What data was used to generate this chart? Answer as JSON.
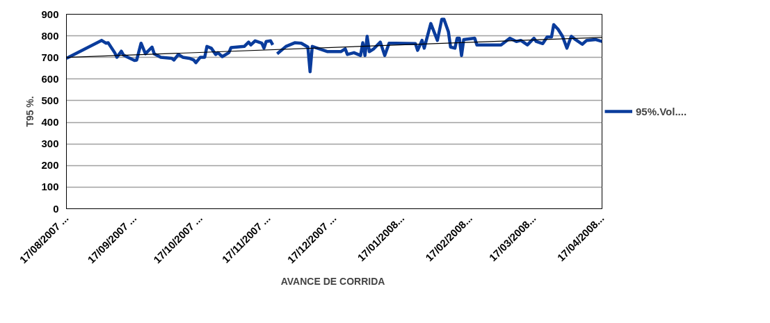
{
  "chart_data": {
    "type": "line",
    "xlabel": "AVANCE  DE CORRIDA",
    "ylabel": "T95 %.",
    "xlim": [
      "2007-08-17",
      "2008-04-17"
    ],
    "ylim": [
      0,
      900
    ],
    "yticks": [
      0,
      100,
      200,
      300,
      400,
      500,
      600,
      700,
      800,
      900
    ],
    "xticks": [
      {
        "value": "2007-08-17",
        "label": "17/08/2007 ..."
      },
      {
        "value": "2007-09-17",
        "label": "17/09/2007 ..."
      },
      {
        "value": "2007-10-17",
        "label": "17/10/2007 ..."
      },
      {
        "value": "2007-11-17",
        "label": "17/11/2007 ..."
      },
      {
        "value": "2007-12-17",
        "label": "17/12/2007 ..."
      },
      {
        "value": "2008-01-17",
        "label": "17/01/2008..."
      },
      {
        "value": "2008-02-17",
        "label": "17/02/2008..."
      },
      {
        "value": "2008-03-17",
        "label": "17/03/2008..."
      },
      {
        "value": "2008-04-17",
        "label": "17/04/2008..."
      }
    ],
    "grid": "y",
    "legend": "right",
    "series": [
      {
        "name": "95%.Vol....",
        "color": "#0a3c9c",
        "x": [
          "2007-08-17",
          "2007-09-02",
          "2007-09-04",
          "2007-09-05",
          "2007-09-08",
          "2007-09-09",
          "2007-09-11",
          "2007-09-12",
          "2007-09-14",
          "2007-09-17",
          "2007-09-18",
          "2007-09-20",
          "2007-09-22",
          "2007-09-25",
          "2007-09-26",
          "2007-09-29",
          "2007-10-04",
          "2007-10-05",
          "2007-10-07",
          "2007-10-09",
          "2007-10-12",
          "2007-10-14",
          "2007-10-15",
          "2007-10-17",
          "2007-10-19",
          "2007-10-20",
          "2007-10-22",
          "2007-10-24",
          "2007-10-25",
          "2007-10-27",
          "2007-10-30",
          "2007-10-31",
          "2007-11-06",
          "2007-11-08",
          "2007-11-09",
          "2007-11-11",
          "2007-11-14",
          "2007-11-15",
          "2007-11-16",
          "2007-11-18",
          "2007-11-19",
          "2007-11-20",
          "2007-11-21",
          "2007-11-25",
          "2007-11-29",
          "2007-12-02",
          "2007-12-05",
          "2007-12-06",
          "2007-12-07",
          "2007-12-14",
          "2007-12-20",
          "2007-12-22",
          "2007-12-23",
          "2007-12-26",
          "2007-12-29",
          "2007-12-30",
          "2007-12-31",
          "2008-01-01",
          "2008-01-02",
          "2008-01-04",
          "2008-01-07",
          "2008-01-09",
          "2008-01-11",
          "2008-01-14",
          "2008-01-23",
          "2008-01-24",
          "2008-01-26",
          "2008-01-27",
          "2008-01-30",
          "2008-02-02",
          "2008-02-04",
          "2008-02-05",
          "2008-02-07",
          "2008-02-08",
          "2008-02-10",
          "2008-02-11",
          "2008-02-12",
          "2008-02-13",
          "2008-02-14",
          "2008-02-19",
          "2008-02-20",
          "2008-03-02",
          "2008-03-06",
          "2008-03-09",
          "2008-03-11",
          "2008-03-14",
          "2008-03-17",
          "2008-03-18",
          "2008-03-21",
          "2008-03-23",
          "2008-03-25",
          "2008-03-26",
          "2008-03-28",
          "2008-03-30",
          "2008-04-01",
          "2008-04-03",
          "2008-04-05",
          "2008-04-08",
          "2008-04-10",
          "2008-04-14",
          "2008-04-17"
        ],
        "values": [
          696,
          779,
          766,
          768,
          722,
          701,
          729,
          711,
          701,
          686,
          688,
          766,
          717,
          748,
          717,
          701,
          696,
          688,
          714,
          701,
          696,
          688,
          676,
          701,
          701,
          751,
          743,
          714,
          722,
          704,
          722,
          746,
          751,
          771,
          758,
          777,
          766,
          743,
          774,
          777,
          758,
          null,
          717,
          751,
          768,
          766,
          748,
          634,
          751,
          727,
          727,
          740,
          714,
          722,
          709,
          768,
          709,
          798,
          727,
          740,
          771,
          709,
          766,
          766,
          764,
          733,
          779,
          743,
          857,
          779,
          877,
          877,
          820,
          748,
          743,
          789,
          789,
          709,
          783,
          789,
          758,
          758,
          789,
          774,
          779,
          758,
          789,
          774,
          764,
          795,
          795,
          852,
          830,
          798,
          743,
          798,
          782,
          761,
          779,
          783,
          774
        ]
      },
      {
        "type": "line",
        "color": "#000000",
        "x": [
          "2007-08-17",
          "2008-04-17"
        ],
        "values": [
          700,
          793
        ]
      }
    ]
  }
}
